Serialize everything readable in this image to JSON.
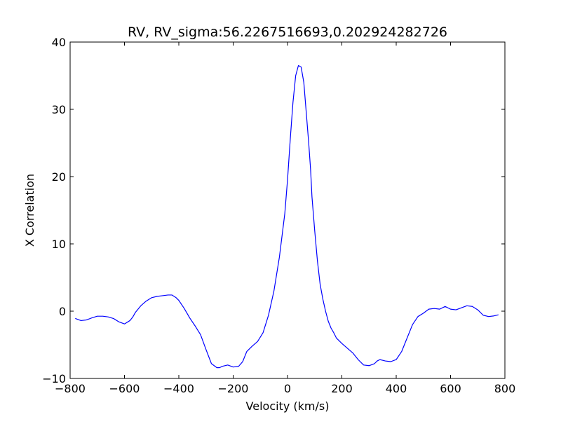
{
  "chart_data": {
    "type": "line",
    "title": "RV, RV_sigma:56.2267516693,0.202924282726",
    "xlabel": "Velocity (km/s)",
    "ylabel": "X Correlation",
    "xlim": [
      -800,
      800
    ],
    "ylim": [
      -10,
      40
    ],
    "xticks": [
      -800,
      -600,
      -400,
      -200,
      0,
      200,
      400,
      600,
      800
    ],
    "xtick_labels": [
      "−800",
      "−600",
      "−400",
      "−200",
      "0",
      "200",
      "400",
      "600",
      "800"
    ],
    "yticks": [
      -10,
      0,
      10,
      20,
      30,
      40
    ],
    "ytick_labels": [
      "−10",
      "0",
      "10",
      "20",
      "30",
      "40"
    ],
    "grid": false,
    "legend": "none",
    "series": [
      {
        "color": "#0000ff",
        "x": [
          -780,
          -760,
          -740,
          -720,
          -700,
          -680,
          -660,
          -640,
          -620,
          -600,
          -580,
          -570,
          -560,
          -540,
          -520,
          -500,
          -480,
          -460,
          -440,
          -425,
          -410,
          -400,
          -380,
          -360,
          -340,
          -320,
          -300,
          -280,
          -260,
          -250,
          -240,
          -220,
          -200,
          -180,
          -165,
          -150,
          -130,
          -110,
          -90,
          -70,
          -50,
          -30,
          -10,
          0,
          10,
          20,
          30,
          40,
          50,
          60,
          70,
          78,
          85,
          90,
          100,
          110,
          120,
          130,
          140,
          150,
          160,
          170,
          180,
          200,
          220,
          240,
          260,
          280,
          300,
          320,
          330,
          340,
          360,
          380,
          400,
          420,
          440,
          460,
          480,
          500,
          520,
          540,
          560,
          580,
          600,
          620,
          640,
          660,
          680,
          700,
          720,
          740,
          760,
          775
        ],
        "y": [
          -1.1,
          -1.4,
          -1.3,
          -1.0,
          -0.75,
          -0.75,
          -0.85,
          -1.1,
          -1.6,
          -1.9,
          -1.4,
          -0.9,
          -0.2,
          0.8,
          1.5,
          2.0,
          2.2,
          2.3,
          2.4,
          2.4,
          2.0,
          1.6,
          0.4,
          -1.0,
          -2.2,
          -3.5,
          -5.7,
          -7.8,
          -8.4,
          -8.4,
          -8.2,
          -8.0,
          -8.3,
          -8.2,
          -7.5,
          -6.0,
          -5.2,
          -4.5,
          -3.2,
          -0.6,
          3.0,
          8.0,
          14.5,
          19.5,
          25.5,
          31.0,
          35.0,
          36.5,
          36.3,
          34.0,
          29.0,
          25.0,
          21.0,
          17.0,
          12.0,
          7.5,
          4.0,
          1.8,
          0.0,
          -1.5,
          -2.5,
          -3.2,
          -4.0,
          -4.8,
          -5.5,
          -6.2,
          -7.2,
          -8.0,
          -8.1,
          -7.8,
          -7.4,
          -7.2,
          -7.4,
          -7.5,
          -7.2,
          -6.0,
          -4.0,
          -2.0,
          -0.8,
          -0.3,
          0.3,
          0.4,
          0.3,
          0.7,
          0.3,
          0.2,
          0.5,
          0.8,
          0.7,
          0.2,
          -0.6,
          -0.8,
          -0.7,
          -0.55
        ]
      }
    ]
  }
}
